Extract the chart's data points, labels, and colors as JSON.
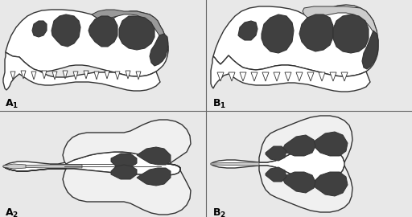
{
  "bg": "#e8e8e8",
  "white": "#ffffff",
  "dark": "#404040",
  "mid_gray": "#999999",
  "light_gray": "#cccccc",
  "near_white": "#f0f0f0",
  "outline": "#333333",
  "lw": 1.0
}
